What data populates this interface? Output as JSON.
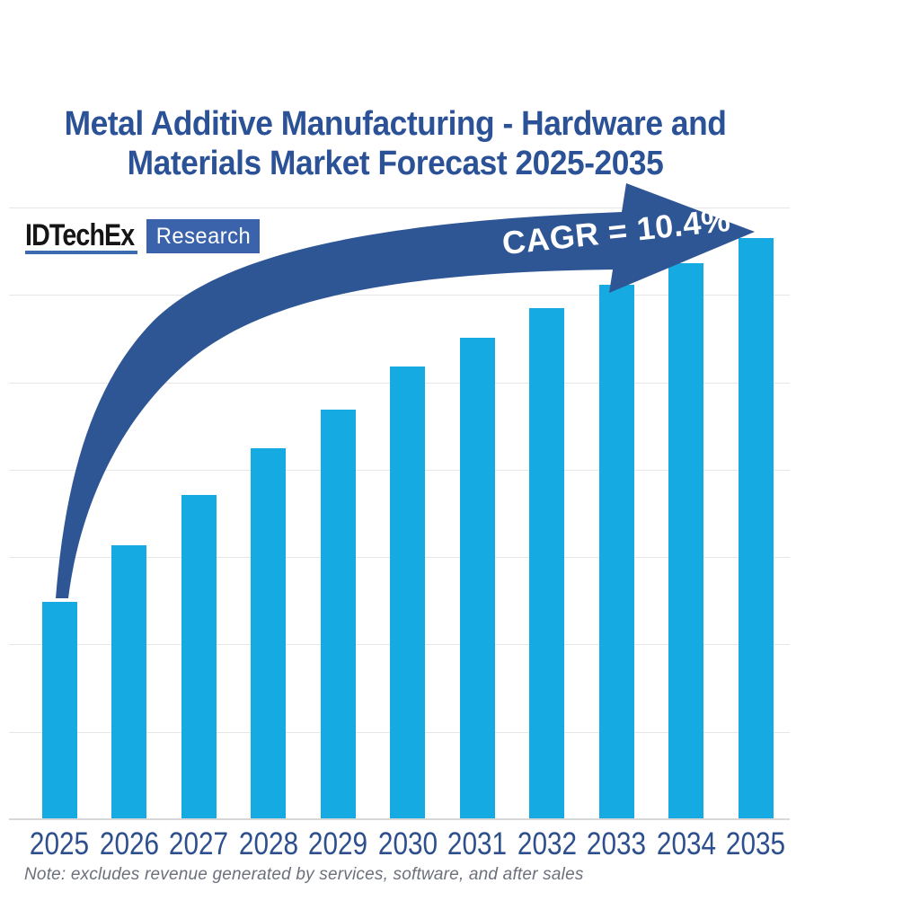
{
  "header": {
    "title_line1": "Metal Additive Manufacturing - Hardware and",
    "title_line2": "Materials Market Forecast 2025-2035",
    "title_color": "#2B5296"
  },
  "logo": {
    "brand": "IDTechEx",
    "product": "Research",
    "brand_color": "#151515",
    "accent_color": "#3A63AC"
  },
  "annotation": {
    "cagr_label": "CAGR = 10.4%",
    "arrow_color": "#2E5695",
    "text_color": "#FFFFFF"
  },
  "footnote": {
    "text": "Note: excludes revenue generated by services, software, and after sales"
  },
  "chart_data": {
    "type": "bar",
    "title": "Metal Additive Manufacturing - Hardware and Materials Market Forecast 2025-2035",
    "categories": [
      "2025",
      "2026",
      "2027",
      "2028",
      "2029",
      "2030",
      "2031",
      "2032",
      "2033",
      "2034",
      "2035"
    ],
    "values_indexed_2025_base_1": [
      1.0,
      1.26,
      1.49,
      1.71,
      1.88,
      2.08,
      2.22,
      2.35,
      2.46,
      2.56,
      2.67
    ],
    "bar_height_fractions_of_plot": [
      0.355,
      0.448,
      0.53,
      0.606,
      0.67,
      0.74,
      0.787,
      0.836,
      0.874,
      0.909,
      0.95
    ],
    "annotation": "CAGR = 10.4%",
    "xlabel": "",
    "ylabel": "",
    "y_axis_tick_labels_visible": false,
    "legend": "none",
    "gridline_count": 8,
    "grid_color": "#E6E6E6",
    "bar_color": "#16AAE2",
    "label_color": "#2D4F8E"
  }
}
